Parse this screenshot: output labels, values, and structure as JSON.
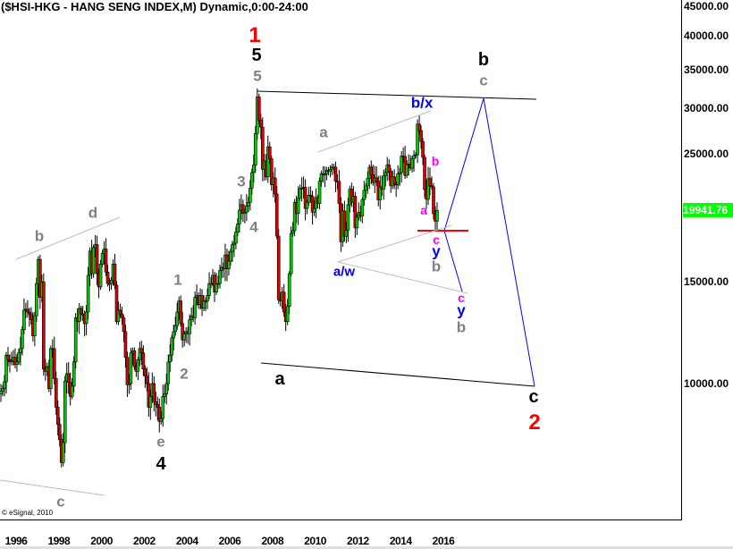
{
  "header": {
    "title": "($HSI-HKG - HANG SENG INDEX,M) Dynamic,0:00-24:00"
  },
  "copyright": "© eSignal, 2010",
  "colors": {
    "up": "#00cc00",
    "down": "#dd0000",
    "price_box": "#00ff00",
    "wave_blue": "#0000ff",
    "wave_magenta": "#ff00ff",
    "wave_gray": "#808080",
    "wave_red": "#ff0000",
    "channel": "#c8b4c8"
  },
  "chart_data": {
    "type": "candlestick",
    "title": "($HSI-HKG - HANG SENG INDEX,M) Dynamic,0:00-24:00",
    "y_scale": "log",
    "ylim": [
      6000,
      46000
    ],
    "y_ticks": [
      "45000.00",
      "40000.00",
      "35000.00",
      "30000.00",
      "25000.00",
      "15000.00",
      "10000.00"
    ],
    "y_tick_values": [
      45000,
      40000,
      35000,
      30000,
      25000,
      15000,
      10000
    ],
    "x_ticks": [
      "1996",
      "1998",
      "2000",
      "2002",
      "2004",
      "2006",
      "2008",
      "2010",
      "2012",
      "2014",
      "2016"
    ],
    "last_price": "19941.76",
    "start_month": "1995-10",
    "monthly_close": [
      9700,
      9800,
      10070,
      11200,
      11000,
      10900,
      10950,
      11100,
      10800,
      10900,
      11300,
      11500,
      12400,
      13400,
      13450,
      13300,
      13200,
      12900,
      12100,
      13100,
      14900,
      16400,
      14100,
      15000,
      10600,
      10500,
      10700,
      9800,
      11500,
      11500,
      10200,
      9100,
      8500,
      8000,
      7300,
      7900,
      10100,
      10400,
      10050,
      9500,
      9900,
      10900,
      13000,
      12800,
      13500,
      13200,
      13200,
      12700,
      13300,
      15400,
      16960,
      15500,
      17200,
      17400,
      15500,
      14700,
      16100,
      16800,
      17100,
      15600,
      14900,
      14900,
      15100,
      16100,
      14800,
      12800,
      13400,
      13200,
      13000,
      12300,
      11100,
      9950,
      10000,
      11300,
      11400,
      10700,
      10500,
      11000,
      11500,
      11300,
      10600,
      10300,
      10000,
      9100,
      9500,
      10000,
      9300,
      9200,
      9100,
      8600,
      8700,
      9500,
      9600,
      10000,
      10900,
      11200,
      12000,
      12300,
      12600,
      13300,
      13900,
      12700,
      11900,
      12200,
      12300,
      12200,
      12900,
      13100,
      13000,
      14100,
      14200,
      13700,
      14200,
      13500,
      13900,
      13900,
      14200,
      14900,
      14900,
      15400,
      14400,
      14900,
      14900,
      15700,
      15900,
      15800,
      16700,
      15800,
      16300,
      16900,
      17400,
      17500,
      18300,
      18900,
      19960,
      20400,
      19700,
      19800,
      20300,
      20600,
      21800,
      23200,
      23900,
      27100,
      31350,
      28600,
      27800,
      23500,
      24300,
      22800,
      25700,
      24500,
      22100,
      22700,
      21300,
      18000,
      13970,
      13900,
      14400,
      13300,
      12800,
      13600,
      15500,
      18200,
      18400,
      20600,
      19700,
      20950,
      21750,
      21800,
      21870,
      20100,
      20600,
      21200,
      21100,
      19800,
      20100,
      21000,
      20500,
      22400,
      23100,
      23000,
      23040,
      23400,
      23300,
      23500,
      23700,
      23700,
      22400,
      22400,
      20500,
      17600,
      19900,
      17990,
      18430,
      20400,
      21700,
      20600,
      21100,
      18600,
      19400,
      19800,
      19500,
      20800,
      21600,
      22000,
      22660,
      23700,
      23000,
      22300,
      22700,
      22400,
      20800,
      21900,
      21700,
      22900,
      23200,
      23900,
      23300,
      22000,
      22800,
      22150,
      22130,
      23080,
      23190,
      24760,
      24740,
      22930,
      23990,
      23990,
      23600,
      24500,
      24820,
      24900,
      28130,
      27420,
      26250,
      24640,
      21670,
      20850,
      22640,
      22000,
      21914,
      19683,
      19111,
      19941.76
    ]
  },
  "annotations": {
    "w1": "1",
    "w5a": "5",
    "w5b": "5",
    "bb": "b",
    "cg": "c",
    "ag": "a",
    "bx": "b/x",
    "bm": "b",
    "am": "a",
    "cm1": "c",
    "y1": "y",
    "bg1": "b",
    "aw": "a/w",
    "cm2": "c",
    "y2": "y",
    "bg2": "b",
    "ab": "a",
    "cb": "c",
    "w2": "2",
    "g3": "3",
    "g4": "4",
    "g1": "1",
    "g2": "2",
    "gb": "b",
    "gd": "d",
    "ge": "e",
    "b4": "4",
    "gc": "c"
  }
}
